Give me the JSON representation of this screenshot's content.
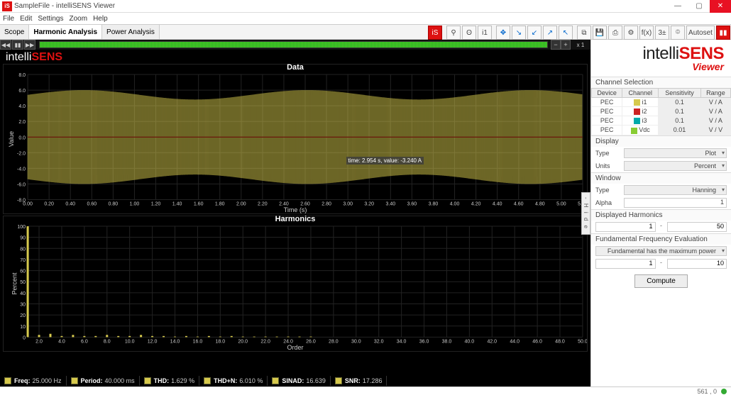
{
  "window": {
    "title": "SampleFile  - intelliSENS Viewer",
    "icon_text": "iS"
  },
  "menu": [
    "File",
    "Edit",
    "Settings",
    "Zoom",
    "Help"
  ],
  "tabs": {
    "scope": "Scope",
    "harm": "Harmonic Analysis",
    "power": "Power Analysis",
    "active": "harm"
  },
  "toolbar": {
    "is": "iS",
    "pin": "⚲",
    "ch": "i1",
    "tgt": "✥",
    "curs1": "↘",
    "curs2": "↙",
    "curs3": "↗",
    "curs4": "↖",
    "copy": "⧉",
    "save": "💾",
    "print": "⎙",
    "cfg": "⚙",
    "fx": "f(x)",
    "math": "3±",
    "snap": "⯐",
    "autoset": "Autoset",
    "pause": "▮▮"
  },
  "viewer_top": {
    "rw": "◀◀",
    "pause": "▮▮",
    "fw": "▶▶",
    "zoom": "x 1"
  },
  "brand_viewer": {
    "pre": "intelli",
    "post": "SENS"
  },
  "charts": {
    "data": {
      "title": "Data",
      "ylabel": "Value",
      "xlabel": "Time (s)",
      "yticks": [
        "-8.0",
        "-6.0",
        "-4.0",
        "-2.0",
        "0.0",
        "2.0",
        "4.0",
        "6.0",
        "8.0"
      ],
      "xticks_start": 0.0,
      "xticks_end": 5.2,
      "xticks_step": 0.2,
      "amp": 6.0,
      "cycles": 130,
      "cursor_tip": "time: 2.954 s, value: -3.240 A",
      "cursor_x_frac": 0.575,
      "cursor_y_frac": 0.66,
      "series_color": "#d6c94d",
      "grid_color": "#222",
      "bg": "#000",
      "text": "#ccc"
    },
    "harm": {
      "title": "Harmonics",
      "ylabel": "Percent",
      "xlabel": "Order",
      "yticks": [
        "0",
        "10",
        "20",
        "30",
        "40",
        "50",
        "60",
        "70",
        "80",
        "90",
        "100"
      ],
      "xticks_start": 2.0,
      "xticks_end": 50.0,
      "xticks_step": 2.0,
      "fundamental": 100,
      "other_levels": [
        2,
        3,
        1,
        2,
        1,
        1,
        2,
        1,
        1,
        2,
        1,
        1,
        0.5,
        1,
        0.5,
        1,
        0.5,
        1,
        0.5,
        0.5,
        0.5,
        0.5,
        0.5,
        0.5,
        0.5
      ],
      "series_color": "#d6c94d",
      "grid_color": "#222"
    }
  },
  "status": {
    "items": [
      {
        "k": "Freq:",
        "v": "25.000 Hz"
      },
      {
        "k": "Period:",
        "v": "40.000 ms"
      },
      {
        "k": "THD:",
        "v": "1.629 %"
      },
      {
        "k": "THD+N:",
        "v": "6.010 %"
      },
      {
        "k": "SINAD:",
        "v": "16.639"
      },
      {
        "k": "SNR:",
        "v": "17.286"
      }
    ],
    "swatch": "#d6c94d"
  },
  "brand_side": {
    "pre": "intelli",
    "post": "SENS",
    "sub": "Viewer"
  },
  "channel_table": {
    "title": "Channel Selection",
    "headers": [
      "Device",
      "Channel",
      "Sensitivity",
      "Range"
    ],
    "rows": [
      {
        "dev": "PEC",
        "sw": "#d6c94d",
        "ch": "i1",
        "sens": "0.1",
        "rng": "V / A"
      },
      {
        "dev": "PEC",
        "sw": "#c22",
        "ch": "i2",
        "sens": "0.1",
        "rng": "V / A"
      },
      {
        "dev": "PEC",
        "sw": "#0aa",
        "ch": "i3",
        "sens": "0.1",
        "rng": "V / A"
      },
      {
        "dev": "PEC",
        "sw": "#8c3",
        "ch": "Vdc",
        "sens": "0.01",
        "rng": "V / V"
      }
    ]
  },
  "display": {
    "title": "Display",
    "type_lbl": "Type",
    "type_val": "Plot",
    "units_lbl": "Units",
    "units_val": "Percent"
  },
  "window_sec": {
    "title": "Window",
    "type_lbl": "Type",
    "type_val": "Hanning",
    "alpha_lbl": "Alpha",
    "alpha_val": "1"
  },
  "harm_sec": {
    "title": "Displayed Harmonics",
    "lo": "1",
    "hi": "50",
    "dash": "-"
  },
  "fund_sec": {
    "title": "Fundamental Frequency Evaluation",
    "method": "Fundamental has the maximum power",
    "lo": "1",
    "hi": "10",
    "dash": "-",
    "compute": "Compute"
  },
  "hide_tab": "- H i d e",
  "footer": "561 , 0"
}
